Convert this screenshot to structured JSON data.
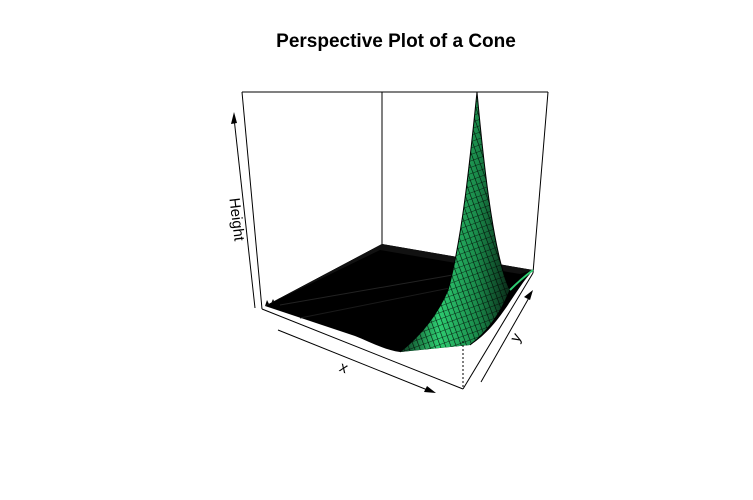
{
  "chart_data": {
    "type": "surface",
    "title": "Perspective Plot of a Cone",
    "xlabel": "x",
    "ylabel": "y",
    "zlabel": "Height",
    "surface_color": "#2ecc71",
    "edge_color": "#000000",
    "background": "#ffffff"
  }
}
